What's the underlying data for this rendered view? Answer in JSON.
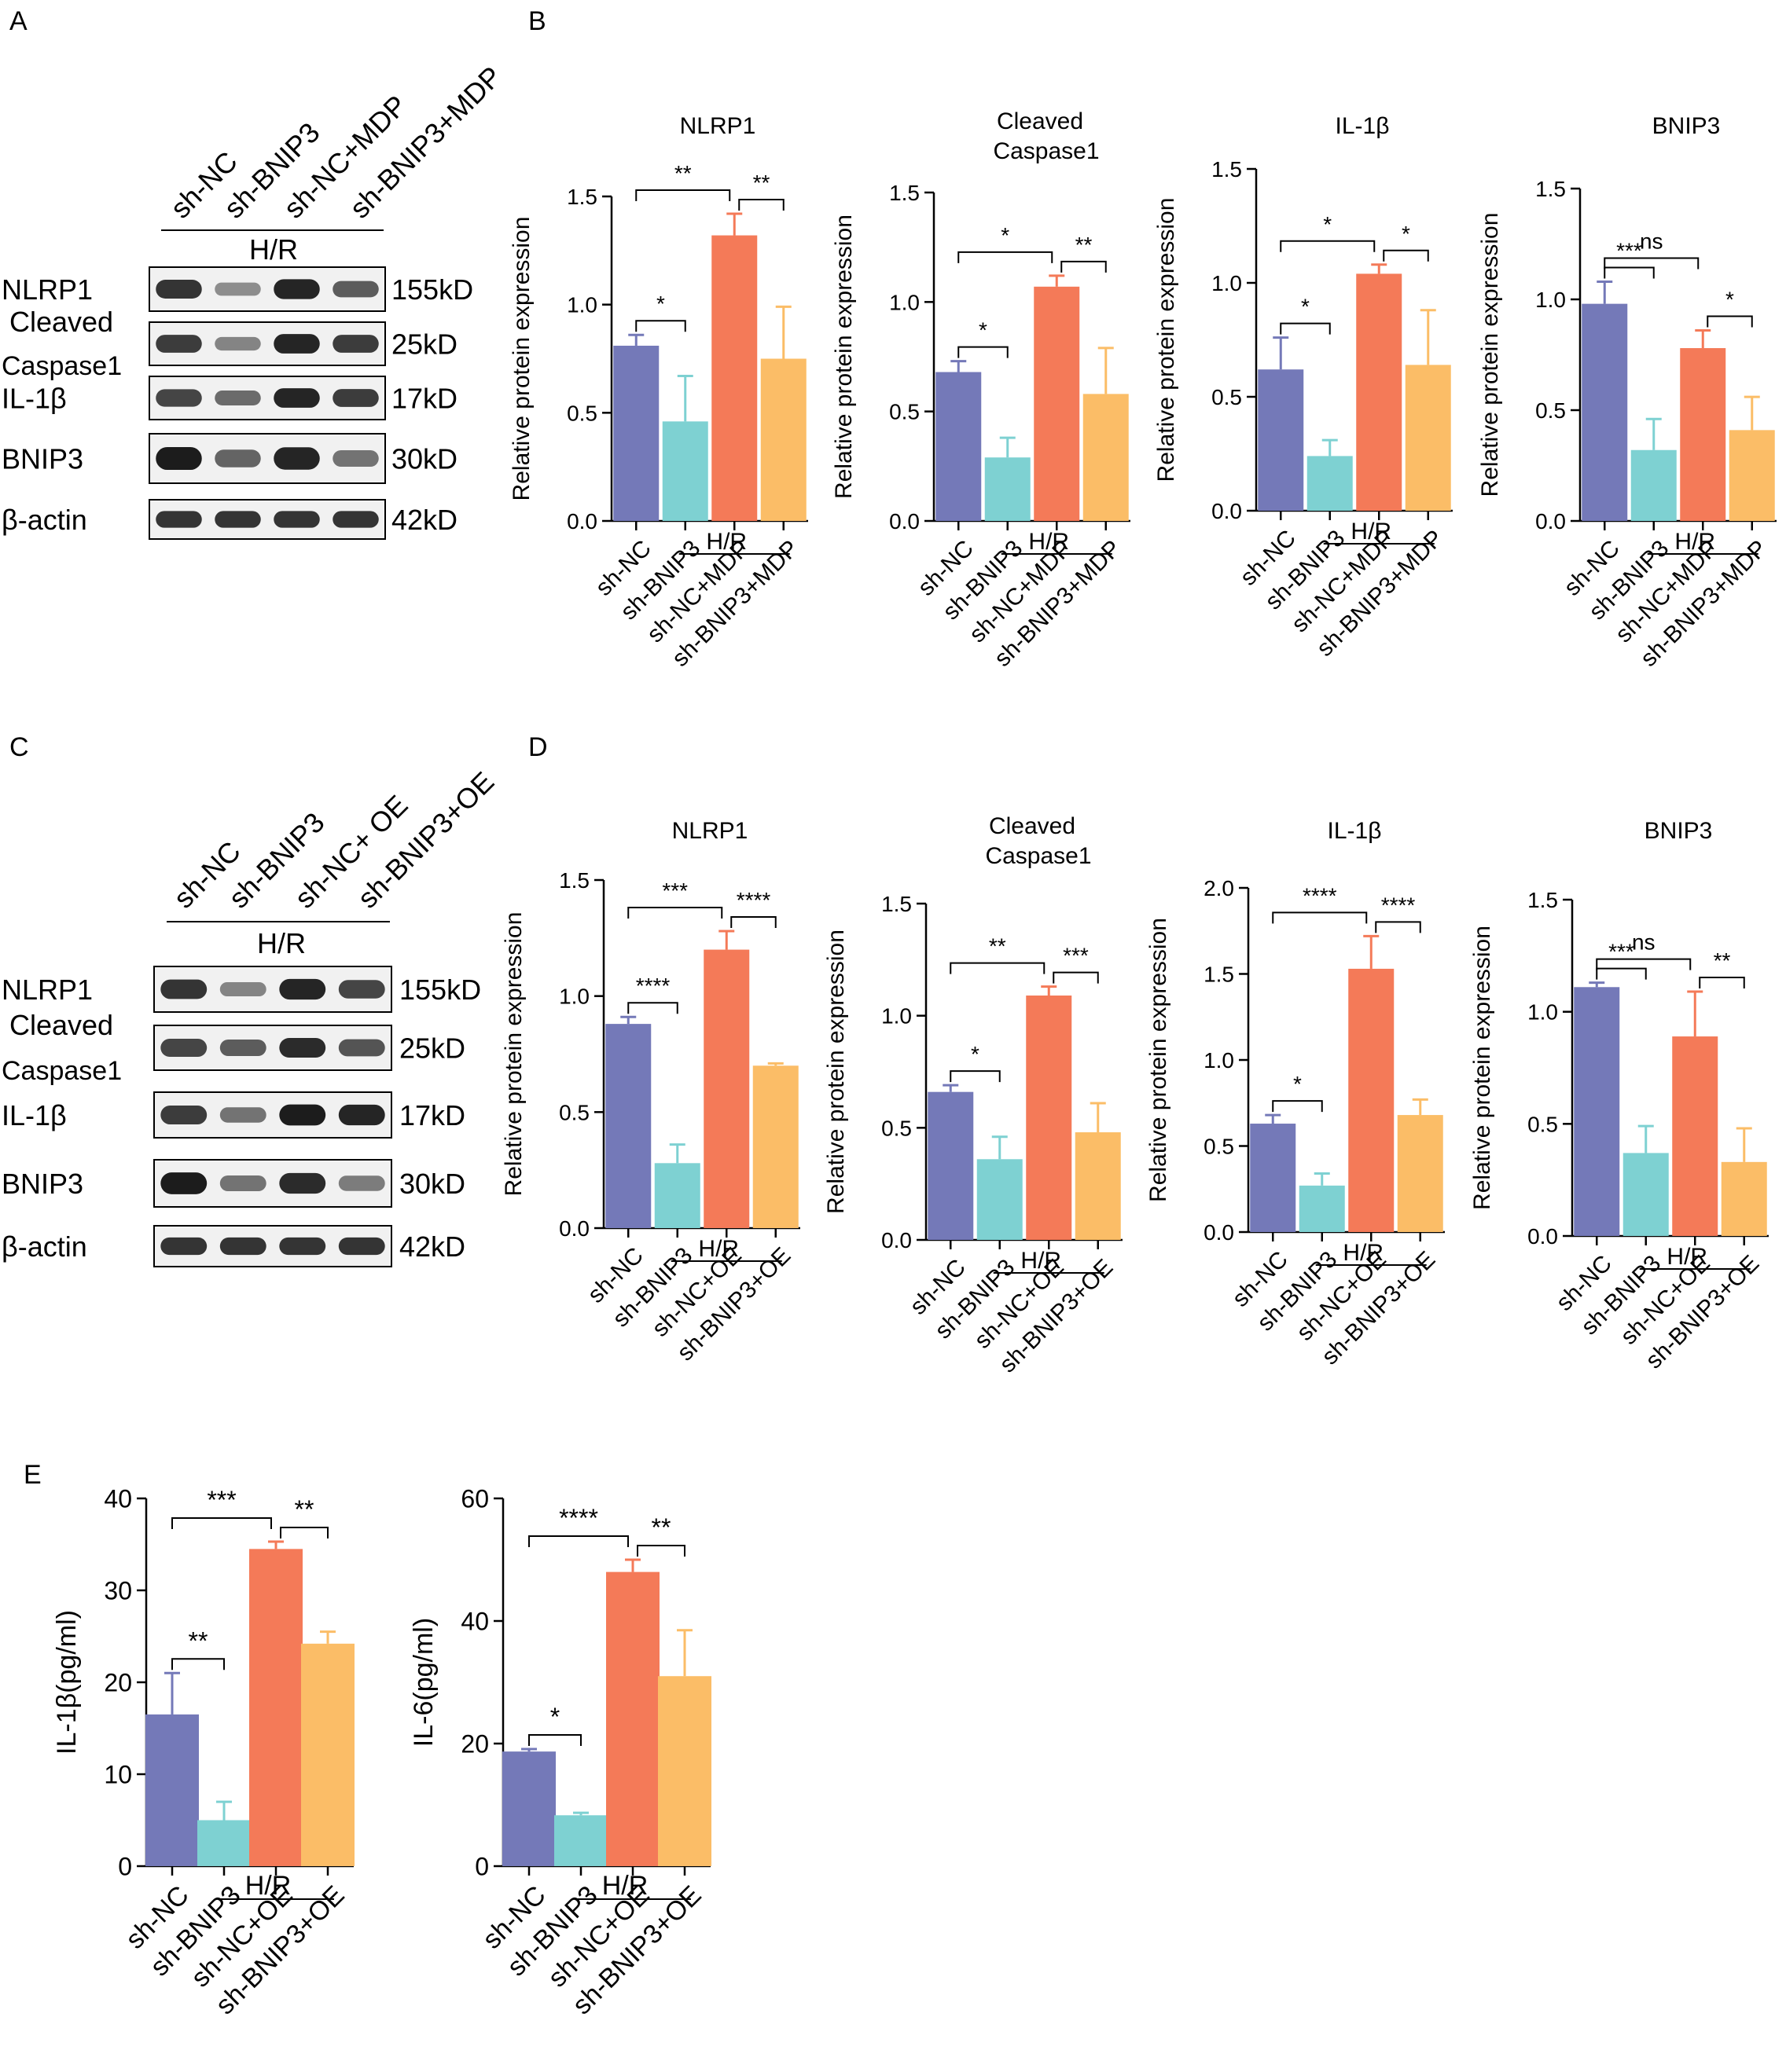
{
  "colors": {
    "sh_NC": "#7479B8",
    "sh_BNIP3": "#7ED1D2",
    "sh_NC_plus": "#F47A58",
    "sh_BNIP3_plus": "#FBBD67",
    "blot_band": "#1c1c1c",
    "blot_bg": "#f1f1f1"
  },
  "panel_labels": {
    "A": "A",
    "B": "B",
    "C": "C",
    "D": "D",
    "E": "E"
  },
  "common": {
    "y_label": "Relative protein expression",
    "group_label": "H/R"
  },
  "blots": [
    {
      "id": "A",
      "lanes": [
        "sh-NC",
        "sh-BNIP3",
        "sh-NC+MDP",
        "sh-BNIP3+MDP"
      ],
      "condition": "H/R",
      "rows": [
        {
          "name": "NLRP1",
          "size": "155kD",
          "intensity": [
            0.85,
            0.3,
            0.95,
            0.6
          ]
        },
        {
          "name": "Cleaved",
          "name2": "Caspase1",
          "size": "25kD",
          "intensity": [
            0.8,
            0.35,
            0.95,
            0.8
          ]
        },
        {
          "name": "IL-1β",
          "size": "17kD",
          "intensity": [
            0.75,
            0.5,
            0.95,
            0.8
          ]
        },
        {
          "name": "BNIP3",
          "size": "30kD",
          "intensity": [
            1.0,
            0.55,
            0.95,
            0.45
          ]
        },
        {
          "name": "β-actin",
          "size": "42kD",
          "intensity": [
            0.85,
            0.85,
            0.85,
            0.85
          ]
        }
      ]
    },
    {
      "id": "C",
      "lanes": [
        "sh-NC",
        "sh-BNIP3",
        "sh-NC+ OE",
        "sh-BNIP3+OE"
      ],
      "condition": "H/R",
      "rows": [
        {
          "name": "NLRP1",
          "size": "155kD",
          "intensity": [
            0.85,
            0.35,
            0.95,
            0.75
          ]
        },
        {
          "name": "Cleaved",
          "name2": "Caspase1",
          "size": "25kD",
          "intensity": [
            0.75,
            0.6,
            0.9,
            0.65
          ]
        },
        {
          "name": "IL-1β",
          "size": "17kD",
          "intensity": [
            0.8,
            0.45,
            1.0,
            0.95
          ]
        },
        {
          "name": "BNIP3",
          "size": "30kD",
          "intensity": [
            1.0,
            0.45,
            0.9,
            0.4
          ]
        },
        {
          "name": "β-actin",
          "size": "42kD",
          "intensity": [
            0.85,
            0.85,
            0.85,
            0.85
          ]
        }
      ]
    }
  ],
  "chart_data": [
    {
      "panel": "B",
      "type": "bar",
      "title": "NLRP1",
      "ylabel": "Relative protein expression",
      "ylim": [
        0,
        1.5
      ],
      "yticks": [
        "0.0",
        "0.5",
        "1.0",
        "1.5"
      ],
      "categories": [
        "sh-NC",
        "sh-BNIP3",
        "sh-NC+MDP",
        "sh-BNIP3+MDP"
      ],
      "values": [
        0.81,
        0.46,
        1.32,
        0.75
      ],
      "errors": [
        0.05,
        0.21,
        0.1,
        0.24
      ],
      "group_label": "H/R",
      "significance": [
        {
          "a": 0,
          "b": 1,
          "label": "*"
        },
        {
          "a": 0,
          "b": 2,
          "label": "**"
        },
        {
          "a": 2,
          "b": 3,
          "label": "**"
        }
      ]
    },
    {
      "panel": "B",
      "type": "bar",
      "title": "Cleaved",
      "title2": "Caspase1",
      "ylabel": "Relative protein expression",
      "ylim": [
        0,
        1.5
      ],
      "yticks": [
        "0.0",
        "0.5",
        "1.0",
        "1.5"
      ],
      "categories": [
        "sh-NC",
        "sh-BNIP3",
        "sh-NC+MDP",
        "sh-BNIP3+MDP"
      ],
      "values": [
        0.68,
        0.29,
        1.07,
        0.58
      ],
      "errors": [
        0.05,
        0.09,
        0.05,
        0.21
      ],
      "group_label": "H/R",
      "significance": [
        {
          "a": 0,
          "b": 1,
          "label": "*"
        },
        {
          "a": 0,
          "b": 2,
          "label": "*"
        },
        {
          "a": 2,
          "b": 3,
          "label": "**"
        }
      ]
    },
    {
      "panel": "B",
      "type": "bar",
      "title": "IL-1β",
      "ylabel": "Relative protein expression",
      "ylim": [
        0,
        1.5
      ],
      "yticks": [
        "0.0",
        "0.5",
        "1.0",
        "1.5"
      ],
      "categories": [
        "sh-NC",
        "sh-BNIP3",
        "sh-NC+MDP",
        "sh-BNIP3+MDP"
      ],
      "values": [
        0.62,
        0.24,
        1.04,
        0.64
      ],
      "errors": [
        0.14,
        0.07,
        0.04,
        0.24
      ],
      "group_label": "H/R",
      "significance": [
        {
          "a": 0,
          "b": 1,
          "label": "*"
        },
        {
          "a": 0,
          "b": 2,
          "label": "*"
        },
        {
          "a": 2,
          "b": 3,
          "label": "*"
        }
      ]
    },
    {
      "panel": "B",
      "type": "bar",
      "title": "BNIP3",
      "ylabel": "Relative protein expression",
      "ylim": [
        0,
        1.5
      ],
      "yticks": [
        "0.0",
        "0.5",
        "1.0",
        "1.5"
      ],
      "categories": [
        "sh-NC",
        "sh-BNIP3",
        "sh-NC+MDP",
        "sh-BNIP3+MDP"
      ],
      "values": [
        0.98,
        0.32,
        0.78,
        0.41
      ],
      "errors": [
        0.1,
        0.14,
        0.08,
        0.15
      ],
      "group_label": "H/R",
      "significance": [
        {
          "a": 0,
          "b": 1,
          "label": "***"
        },
        {
          "a": 0,
          "b": 2,
          "label": "ns"
        },
        {
          "a": 2,
          "b": 3,
          "label": "*"
        }
      ]
    },
    {
      "panel": "D",
      "type": "bar",
      "title": "NLRP1",
      "ylabel": "Relative protein expression",
      "ylim": [
        0,
        1.5
      ],
      "yticks": [
        "0.0",
        "0.5",
        "1.0",
        "1.5"
      ],
      "categories": [
        "sh-NC",
        "sh-BNIP3",
        "sh-NC+OE",
        "sh-BNIP3+OE"
      ],
      "values": [
        0.88,
        0.28,
        1.2,
        0.7
      ],
      "errors": [
        0.03,
        0.08,
        0.08,
        0.01
      ],
      "group_label": "H/R",
      "significance": [
        {
          "a": 0,
          "b": 1,
          "label": "****"
        },
        {
          "a": 0,
          "b": 2,
          "label": "***"
        },
        {
          "a": 2,
          "b": 3,
          "label": "****"
        }
      ]
    },
    {
      "panel": "D",
      "type": "bar",
      "title": "Cleaved",
      "title2": "Caspase1",
      "ylabel": "Relative protein expression",
      "ylim": [
        0,
        1.5
      ],
      "yticks": [
        "0.0",
        "0.5",
        "1.0",
        "1.5"
      ],
      "categories": [
        "sh-NC",
        "sh-BNIP3",
        "sh-NC+OE",
        "sh-BNIP3+OE"
      ],
      "values": [
        0.66,
        0.36,
        1.09,
        0.48
      ],
      "errors": [
        0.03,
        0.1,
        0.04,
        0.13
      ],
      "group_label": "H/R",
      "significance": [
        {
          "a": 0,
          "b": 1,
          "label": "*"
        },
        {
          "a": 0,
          "b": 2,
          "label": "**"
        },
        {
          "a": 2,
          "b": 3,
          "label": "***"
        }
      ]
    },
    {
      "panel": "D",
      "type": "bar",
      "title": "IL-1β",
      "ylabel": "Relative protein expression",
      "ylim": [
        0,
        2.0
      ],
      "yticks": [
        "0.0",
        "0.5",
        "1.0",
        "1.5",
        "2.0"
      ],
      "categories": [
        "sh-NC",
        "sh-BNIP3",
        "sh-NC+OE",
        "sh-BNIP3+OE"
      ],
      "values": [
        0.63,
        0.27,
        1.53,
        0.68
      ],
      "errors": [
        0.05,
        0.07,
        0.19,
        0.09
      ],
      "group_label": "H/R",
      "significance": [
        {
          "a": 0,
          "b": 1,
          "label": "*"
        },
        {
          "a": 0,
          "b": 2,
          "label": "****"
        },
        {
          "a": 2,
          "b": 3,
          "label": "****"
        }
      ]
    },
    {
      "panel": "D",
      "type": "bar",
      "title": "BNIP3",
      "ylabel": "Relative protein expression",
      "ylim": [
        0,
        1.5
      ],
      "yticks": [
        "0.0",
        "0.5",
        "1.0",
        "1.5"
      ],
      "categories": [
        "sh-NC",
        "sh-BNIP3",
        "sh-NC+OE",
        "sh-BNIP3+OE"
      ],
      "values": [
        1.11,
        0.37,
        0.89,
        0.33
      ],
      "errors": [
        0.02,
        0.12,
        0.2,
        0.15
      ],
      "group_label": "H/R",
      "significance": [
        {
          "a": 0,
          "b": 1,
          "label": "***"
        },
        {
          "a": 0,
          "b": 2,
          "label": "ns"
        },
        {
          "a": 2,
          "b": 3,
          "label": "**"
        }
      ]
    },
    {
      "panel": "E",
      "type": "bar",
      "title": "",
      "ylabel": "IL-1β(pg/ml)",
      "ylim": [
        0,
        40
      ],
      "yticks": [
        "0",
        "10",
        "20",
        "30",
        "40"
      ],
      "categories": [
        "sh-NC",
        "sh-BNIP3",
        "sh-NC+OE",
        "sh-BNIP3+OE"
      ],
      "values": [
        16.5,
        5.0,
        34.5,
        24.2
      ],
      "errors": [
        4.5,
        2.0,
        0.8,
        1.3
      ],
      "group_label": "H/R",
      "significance": [
        {
          "a": 0,
          "b": 1,
          "label": "**"
        },
        {
          "a": 0,
          "b": 2,
          "label": "***"
        },
        {
          "a": 2,
          "b": 3,
          "label": "**"
        }
      ]
    },
    {
      "panel": "E",
      "type": "bar",
      "title": "",
      "ylabel": "IL-6(pg/ml)",
      "ylim": [
        0,
        60
      ],
      "yticks": [
        "0",
        "20",
        "40",
        "60"
      ],
      "categories": [
        "sh-NC",
        "sh-BNIP3",
        "sh-NC+OE",
        "sh-BNIP3+OE"
      ],
      "values": [
        18.7,
        8.3,
        48.0,
        31.0
      ],
      "errors": [
        0.4,
        0.4,
        2.0,
        7.5
      ],
      "group_label": "H/R",
      "significance": [
        {
          "a": 0,
          "b": 1,
          "label": "*"
        },
        {
          "a": 0,
          "b": 2,
          "label": "****"
        },
        {
          "a": 2,
          "b": 3,
          "label": "**"
        }
      ]
    }
  ]
}
